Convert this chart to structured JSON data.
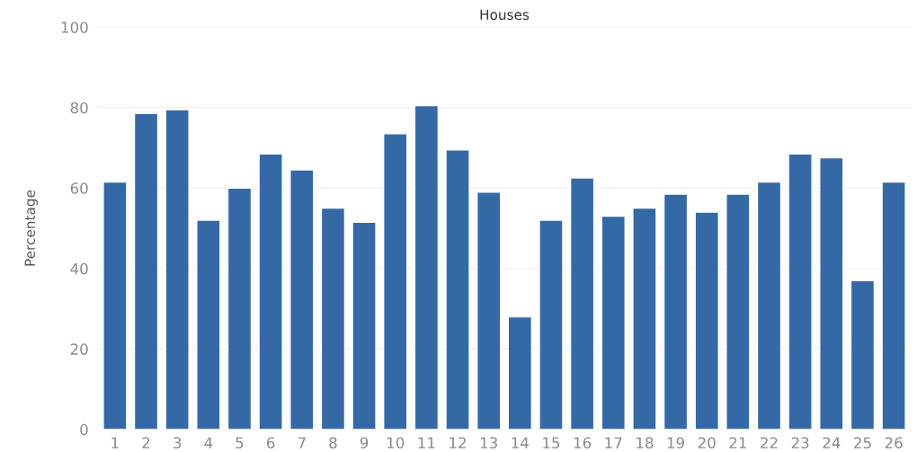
{
  "chart_data": {
    "type": "bar",
    "title": "Houses",
    "ylabel": "Percentage",
    "categories": [
      "1",
      "2",
      "3",
      "4",
      "5",
      "6",
      "7",
      "8",
      "9",
      "10",
      "11",
      "12",
      "13",
      "14",
      "15",
      "16",
      "17",
      "18",
      "19",
      "20",
      "21",
      "22",
      "23",
      "24",
      "25",
      "26"
    ],
    "values": [
      61.5,
      78.5,
      79.5,
      52,
      60,
      68.5,
      64.5,
      55,
      51.5,
      73.5,
      80.5,
      69.5,
      59,
      28,
      52,
      62.5,
      53,
      55,
      58.5,
      54,
      58.5,
      61.5,
      68.5,
      67.5,
      37,
      61.5
    ],
    "color": "#3469a5",
    "ylim": [
      0,
      100
    ],
    "yticks": [
      0,
      20,
      40,
      60,
      80,
      100
    ],
    "grid": "y"
  }
}
